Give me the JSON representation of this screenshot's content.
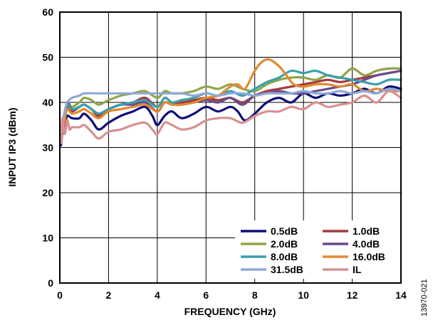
{
  "chart_data": {
    "type": "line",
    "title": "",
    "xlabel": "FREQUENCY (GHz)",
    "ylabel": "INPUT IP3 (dBm)",
    "xlim": [
      0,
      14
    ],
    "ylim": [
      0,
      60
    ],
    "xticks": [
      "0",
      "2",
      "4",
      "6",
      "8",
      "10",
      "12",
      "14"
    ],
    "yticks": [
      "0",
      "10",
      "20",
      "30",
      "40",
      "50",
      "60"
    ],
    "grid": true,
    "legend_position": "bottom-right",
    "figure_id": "13970-021",
    "series": [
      {
        "name": "0.5dB",
        "color": "#0d0f78",
        "x": [
          0.05,
          0.1,
          0.2,
          0.3,
          0.5,
          0.8,
          1.0,
          1.3,
          1.6,
          2.0,
          2.5,
          3.0,
          3.5,
          3.8,
          4.0,
          4.3,
          4.6,
          5.0,
          5.5,
          6.0,
          6.5,
          7.0,
          7.3,
          7.6,
          8.0,
          8.5,
          9.0,
          9.5,
          10.0,
          10.5,
          11.0,
          11.5,
          12.0,
          12.5,
          13.0,
          13.5,
          14.0
        ],
        "y": [
          30.5,
          33,
          35,
          37,
          36.5,
          36.5,
          37.5,
          36,
          34,
          35.5,
          37,
          38,
          39,
          37,
          35,
          37,
          38,
          36.5,
          37.5,
          39,
          38,
          39,
          38,
          36,
          37.5,
          40,
          41,
          40,
          42,
          41,
          42,
          41.5,
          42,
          43,
          42,
          43.5,
          43
        ]
      },
      {
        "name": "1.0dB",
        "color": "#a63a3a",
        "x": [
          0.05,
          0.1,
          0.2,
          0.3,
          0.5,
          0.8,
          1.0,
          1.3,
          1.6,
          2.0,
          2.5,
          3.0,
          3.5,
          4.0,
          4.3,
          4.6,
          5.0,
          5.5,
          6.0,
          6.5,
          7.0,
          7.5,
          8.0,
          8.5,
          9.0,
          9.5,
          10.0,
          10.5,
          11.0,
          11.5,
          12.0,
          12.5,
          13.0,
          13.5,
          14.0
        ],
        "y": [
          31,
          33.5,
          36,
          39,
          38,
          39,
          39.5,
          38.5,
          37,
          38.5,
          39.5,
          40,
          41,
          39,
          41,
          40,
          40,
          40.5,
          41,
          40.5,
          41,
          40,
          41.5,
          42.5,
          43,
          43.5,
          44,
          44.5,
          45,
          44.5,
          45,
          45.5,
          46,
          46.5,
          47
        ]
      },
      {
        "name": "2.0dB",
        "color": "#8fa548",
        "x": [
          0.05,
          0.1,
          0.2,
          0.3,
          0.5,
          0.8,
          1.0,
          1.3,
          1.6,
          2.0,
          2.5,
          3.0,
          3.5,
          4.0,
          4.3,
          4.6,
          5.0,
          5.5,
          6.0,
          6.5,
          7.0,
          7.5,
          8.0,
          8.5,
          9.0,
          9.5,
          10.0,
          10.5,
          11.0,
          11.5,
          12.0,
          12.5,
          13.0,
          13.5,
          14.0
        ],
        "y": [
          31,
          34,
          37,
          40,
          39,
          40,
          41,
          40.5,
          39.5,
          40.5,
          41.5,
          42,
          42.5,
          41,
          42.5,
          42,
          42,
          42.5,
          43.5,
          43,
          44,
          43,
          42.5,
          44,
          45,
          45.5,
          45.5,
          45,
          46,
          45.5,
          47.5,
          46,
          47,
          47.5,
          47.5
        ]
      },
      {
        "name": "4.0dB",
        "color": "#6a4b8c",
        "x": [
          0.05,
          0.1,
          0.2,
          0.3,
          0.5,
          0.8,
          1.0,
          1.3,
          1.6,
          2.0,
          2.5,
          3.0,
          3.5,
          4.0,
          4.3,
          4.6,
          5.0,
          5.5,
          6.0,
          6.5,
          7.0,
          7.5,
          8.0,
          8.5,
          9.0,
          9.5,
          10.0,
          10.5,
          11.0,
          11.5,
          12.0,
          12.5,
          13.0,
          13.5,
          14.0
        ],
        "y": [
          31,
          33.5,
          37,
          40,
          38.5,
          39,
          39.5,
          38.5,
          37.5,
          38.5,
          39.5,
          39.5,
          40,
          38,
          40,
          39.5,
          39.5,
          40,
          40.5,
          40,
          41,
          39.5,
          41.5,
          42,
          42.5,
          42,
          42,
          42.5,
          43,
          43.5,
          44,
          45,
          46,
          46.5,
          47
        ]
      },
      {
        "name": "8.0dB",
        "color": "#3aa0ab",
        "x": [
          0.05,
          0.1,
          0.2,
          0.3,
          0.5,
          0.8,
          1.0,
          1.3,
          1.6,
          2.0,
          2.5,
          3.0,
          3.5,
          4.0,
          4.3,
          4.6,
          5.0,
          5.5,
          6.0,
          6.5,
          7.0,
          7.5,
          8.0,
          8.5,
          9.0,
          9.5,
          10.0,
          10.5,
          11.0,
          11.5,
          12.0,
          12.5,
          13.0,
          13.5,
          14.0
        ],
        "y": [
          31,
          34,
          37,
          39.5,
          38.5,
          39,
          39.5,
          38.5,
          37.5,
          38.5,
          39.5,
          40,
          40.5,
          39,
          41,
          40,
          40.5,
          41,
          42,
          41.5,
          42.5,
          41.5,
          43,
          44.5,
          45.5,
          47,
          46.5,
          47,
          46,
          45.5,
          45,
          44.5,
          44,
          45,
          45
        ]
      },
      {
        "name": "16.0dB",
        "color": "#e08a30",
        "x": [
          0.05,
          0.1,
          0.2,
          0.3,
          0.5,
          0.8,
          1.0,
          1.3,
          1.6,
          2.0,
          2.5,
          3.0,
          3.5,
          4.0,
          4.3,
          4.6,
          5.0,
          5.5,
          6.0,
          6.5,
          7.0,
          7.3,
          7.6,
          8.0,
          8.3,
          8.6,
          9.0,
          9.3,
          9.6,
          10.0,
          10.5,
          11.0,
          11.5,
          12.0,
          12.5,
          13.0,
          13.5,
          14.0
        ],
        "y": [
          31,
          33.5,
          36,
          38.5,
          37.5,
          38,
          38.5,
          37.5,
          36.5,
          38,
          38.5,
          39,
          39.5,
          38,
          40,
          39.5,
          39.5,
          40,
          41,
          41.5,
          43.5,
          44,
          43,
          47,
          49,
          49.5,
          48,
          46,
          44,
          43.5,
          44,
          44,
          43.5,
          44,
          42.5,
          43,
          42.5,
          42.5
        ]
      },
      {
        "name": "31.5dB",
        "color": "#8fa9d6",
        "x": [
          0.05,
          0.1,
          0.2,
          0.3,
          0.5,
          0.8,
          1.0,
          1.5,
          2.0,
          2.5,
          3.0,
          3.5,
          4.0,
          4.5,
          5.0,
          5.5,
          6.0,
          6.5,
          7.0,
          7.5,
          8.0,
          8.5,
          9.0,
          9.5,
          10.0,
          10.5,
          11.0,
          11.5,
          12.0,
          12.5,
          13.0,
          13.5,
          14.0
        ],
        "y": [
          31,
          35,
          38,
          40,
          41,
          41.5,
          42,
          42,
          42,
          42,
          42,
          42,
          42,
          42,
          42,
          41.5,
          42,
          41.5,
          42,
          42,
          41.5,
          42,
          42,
          42,
          42.5,
          42,
          42,
          42.5,
          42,
          42.5,
          42,
          43,
          42.5
        ]
      },
      {
        "name": "IL",
        "color": "#d89090",
        "x": [
          0.05,
          0.1,
          0.2,
          0.3,
          0.4,
          0.5,
          0.8,
          1.0,
          1.3,
          1.6,
          2.0,
          2.5,
          3.0,
          3.5,
          3.8,
          4.0,
          4.3,
          4.6,
          5.0,
          5.5,
          6.0,
          6.5,
          7.0,
          7.5,
          8.0,
          8.5,
          9.0,
          9.5,
          10.0,
          10.5,
          11.0,
          11.5,
          12.0,
          12.5,
          13.0,
          13.5,
          14.0
        ],
        "y": [
          31,
          36.5,
          33,
          36,
          34,
          34.5,
          34.5,
          35,
          33.5,
          32,
          33.5,
          34,
          35,
          35.5,
          34,
          33,
          35.5,
          35,
          34,
          34.5,
          36,
          36.5,
          36.5,
          35.5,
          37,
          38,
          38,
          39,
          38.5,
          40,
          39,
          39.5,
          40,
          41.5,
          40,
          42.5,
          41
        ]
      }
    ]
  }
}
